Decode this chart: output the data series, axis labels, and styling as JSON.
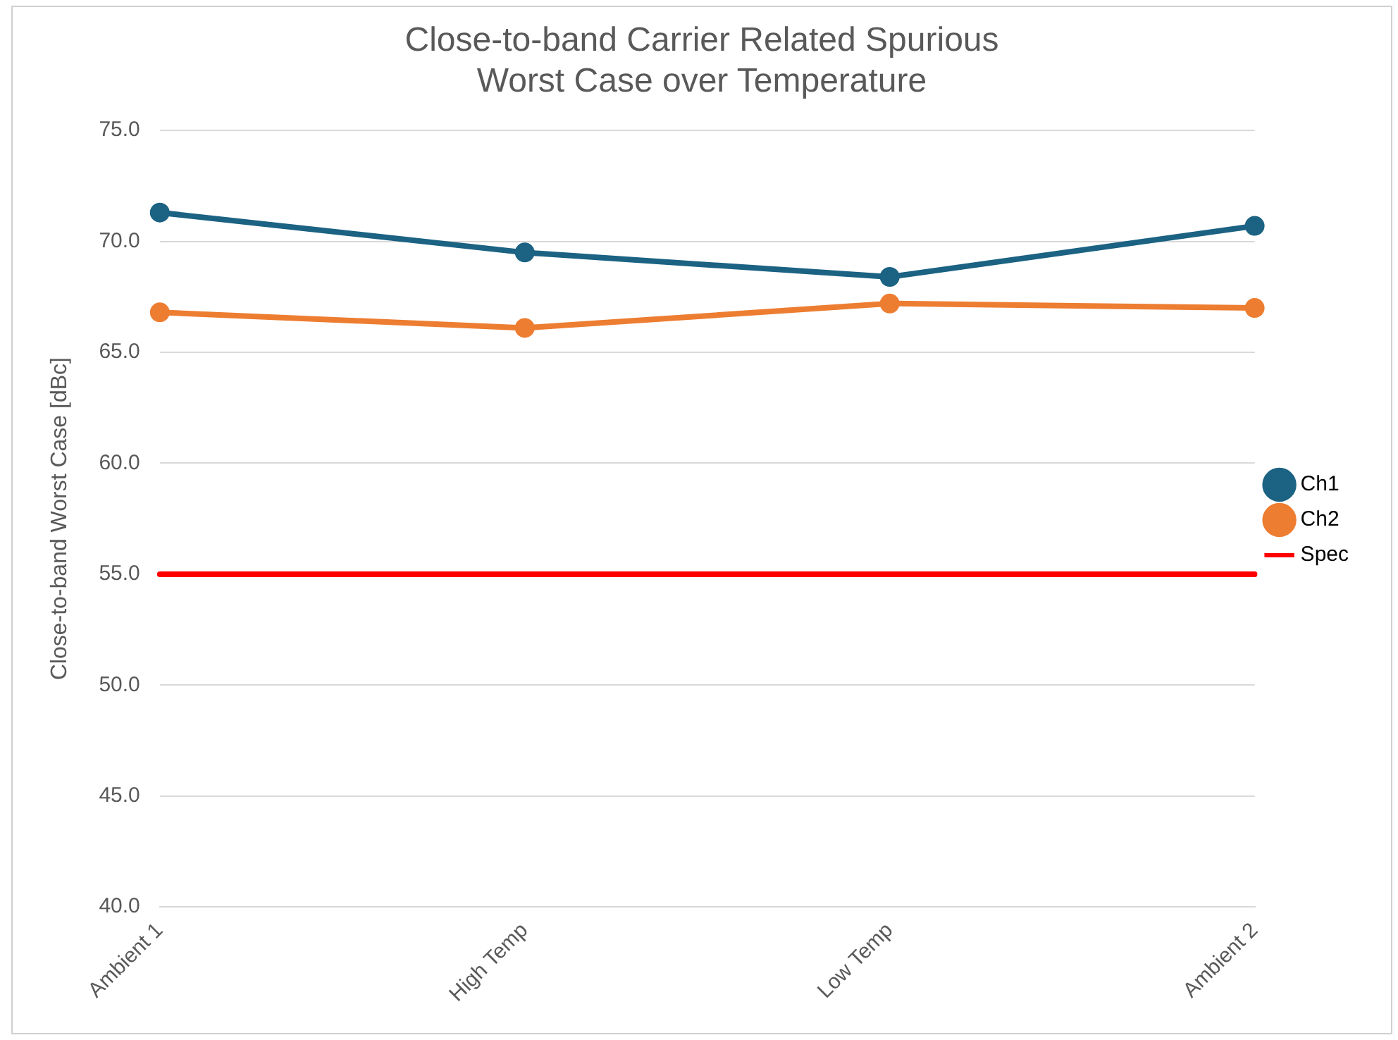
{
  "chart_data": {
    "type": "line",
    "title": "Close-to-band Carrier Related Spurious\nWorst Case over Temperature",
    "ylabel": "Close-to-band Worst Case [dBc]",
    "categories": [
      "Ambient 1",
      "High Temp",
      "Low Temp",
      "Ambient 2"
    ],
    "series": [
      {
        "name": "Ch1",
        "color": "#1b6283",
        "values": [
          71.3,
          69.5,
          68.4,
          70.7
        ]
      },
      {
        "name": "Ch2",
        "color": "#ed7d31",
        "values": [
          66.8,
          66.1,
          67.2,
          67.0
        ]
      },
      {
        "name": "Spec",
        "color": "#ff0000",
        "values": [
          55,
          55,
          55,
          55
        ],
        "marker": "none"
      }
    ],
    "ylim": [
      40,
      75
    ],
    "yticks": [
      {
        "value": 40,
        "label": "40.0"
      },
      {
        "value": 45,
        "label": "45.0"
      },
      {
        "value": 50,
        "label": "50.0"
      },
      {
        "value": 55,
        "label": "55.0"
      },
      {
        "value": 60,
        "label": "60.0"
      },
      {
        "value": 65,
        "label": "65.0"
      },
      {
        "value": 70,
        "label": "70.0"
      },
      {
        "value": 75,
        "label": "75.0"
      }
    ],
    "grid": "y",
    "legend": "right",
    "marker": "circle",
    "line_style": "solid"
  }
}
